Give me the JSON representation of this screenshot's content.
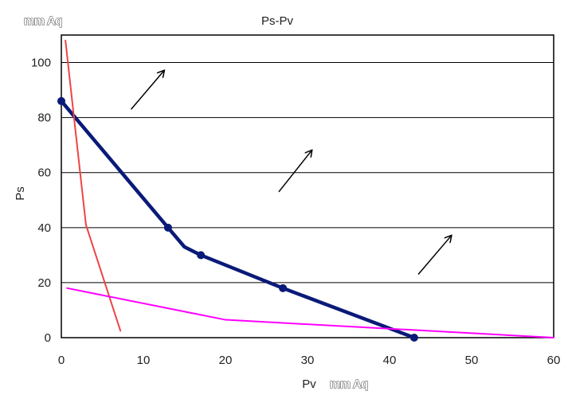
{
  "chart_data": {
    "type": "line",
    "title": "Ps-Pv",
    "xlabel": "Pv",
    "ylabel": "Ps",
    "x_unit": "mm Aq",
    "y_unit": "mm Aq",
    "xlim": [
      0,
      60
    ],
    "ylim": [
      0,
      110
    ],
    "x_ticks": [
      0,
      10,
      20,
      30,
      40,
      50,
      60
    ],
    "y_ticks": [
      0,
      20,
      40,
      60,
      80,
      100
    ],
    "grid": "horizontal",
    "legend": "none",
    "series": [
      {
        "color": "#0a1a78",
        "style": "thick-with-markers",
        "x": [
          0,
          13,
          15,
          17,
          27,
          43
        ],
        "y": [
          86,
          40,
          33,
          30,
          18,
          0
        ],
        "markers": [
          true,
          true,
          false,
          true,
          true,
          true
        ]
      },
      {
        "color": "#ee4444",
        "style": "thin",
        "x": [
          0.5,
          3,
          7.2
        ],
        "y": [
          108,
          41,
          2.5
        ]
      },
      {
        "color": "#ff00ff",
        "style": "thin",
        "x": [
          0.7,
          20,
          60
        ],
        "y": [
          18,
          6.5,
          0
        ]
      }
    ],
    "annotations": [
      {
        "type": "arrow",
        "from": [
          8.5,
          83
        ],
        "to": [
          12.5,
          97
        ]
      },
      {
        "type": "arrow",
        "from": [
          26.5,
          53
        ],
        "to": [
          30.5,
          68
        ]
      },
      {
        "type": "arrow",
        "from": [
          43.5,
          23
        ],
        "to": [
          47.5,
          37
        ]
      }
    ]
  }
}
